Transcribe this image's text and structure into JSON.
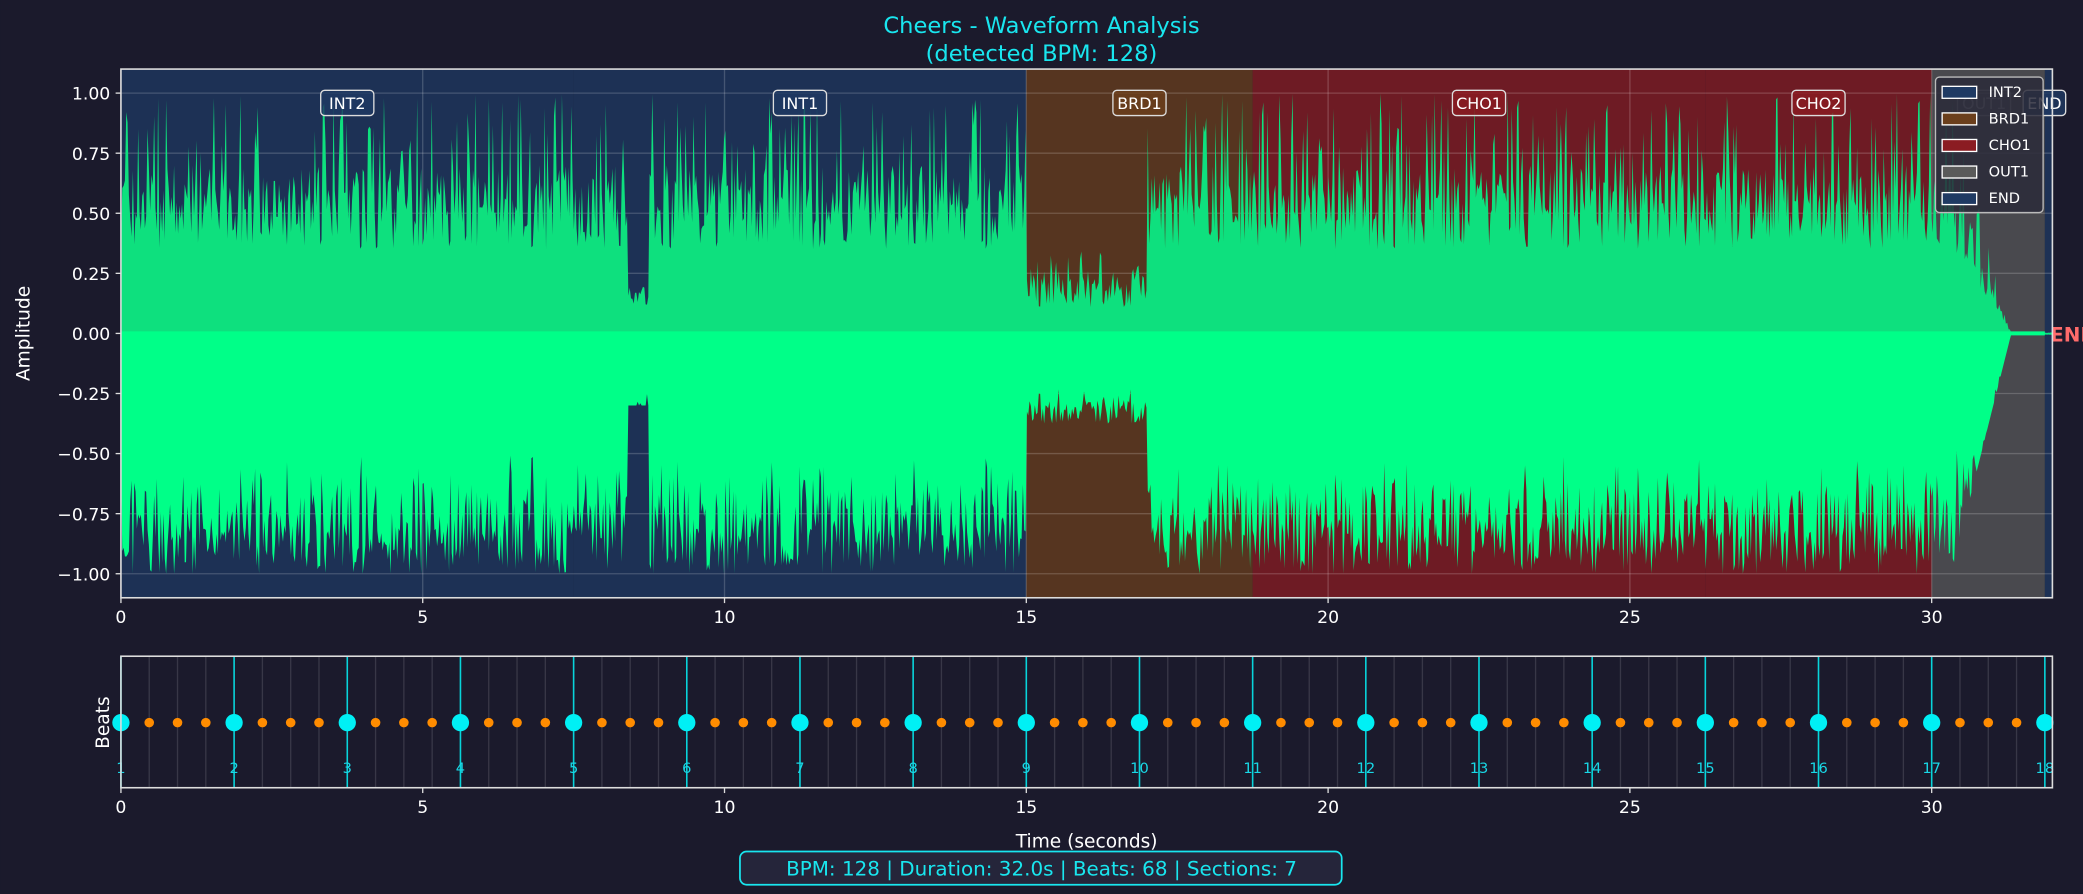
{
  "chart_data": [
    {
      "type": "area",
      "title": "Cheers - Waveform Analysis",
      "subtitle": "(detected BPM: 128)",
      "xlabel": "",
      "ylabel": "Amplitude",
      "xlim": [
        0,
        32
      ],
      "ylim": [
        -1.1,
        1.1
      ],
      "x_ticks": [
        "0",
        "5",
        "10",
        "15",
        "20",
        "25",
        "30"
      ],
      "y_ticks": [
        "1.00",
        "0.75",
        "0.50",
        "0.25",
        "0.00",
        "−0.25",
        "−0.50",
        "−0.75",
        "−1.00"
      ],
      "grid": true,
      "waveform_color": "#00ff88",
      "sections": [
        {
          "label": "INT2",
          "start": 0,
          "end": 7.5,
          "color": "#1f3a63"
        },
        {
          "label": "INT1",
          "start": 7.5,
          "end": 15,
          "color": "#1f3a63"
        },
        {
          "label": "BRD1",
          "start": 15,
          "end": 18.75,
          "color": "#6b3f1c"
        },
        {
          "label": "CHO1",
          "start": 18.75,
          "end": 26.25,
          "color": "#8b1c22"
        },
        {
          "label": "CHO2",
          "start": 26.25,
          "end": 30,
          "color": "#8b1c22"
        },
        {
          "label": "OUT1",
          "start": 30,
          "end": 31.875,
          "color": "#5a5a5a"
        },
        {
          "label": "END",
          "start": 31.875,
          "end": 32,
          "color": "#1f3a63"
        }
      ],
      "end_marker": {
        "label": "END",
        "x": 31.875,
        "color": "#ff6b6b"
      },
      "legend": {
        "placement": "top-right",
        "entries": [
          {
            "label": "INT2",
            "color": "#1f3a63"
          },
          {
            "label": "BRD1",
            "color": "#6b3f1c"
          },
          {
            "label": "CHO1",
            "color": "#8b1c22"
          },
          {
            "label": "OUT1",
            "color": "#5a5a5a"
          },
          {
            "label": "END",
            "color": "#1f3a63"
          }
        ]
      }
    },
    {
      "type": "scatter",
      "xlabel": "Time (seconds)",
      "ylabel": "Beats",
      "xlim": [
        0,
        32
      ],
      "x_ticks": [
        "0",
        "5",
        "10",
        "15",
        "20",
        "25",
        "30"
      ],
      "bpm": 128,
      "beat_interval_s": 0.46875,
      "beat_count": 68,
      "downbeat_color": "#00f0f5",
      "beat_color": "#ff8c00",
      "downbeats": [
        {
          "n": "1",
          "t": 0
        },
        {
          "n": "2",
          "t": 1.875
        },
        {
          "n": "3",
          "t": 3.75
        },
        {
          "n": "4",
          "t": 5.625
        },
        {
          "n": "5",
          "t": 7.5
        },
        {
          "n": "6",
          "t": 9.375
        },
        {
          "n": "7",
          "t": 11.25
        },
        {
          "n": "8",
          "t": 13.125
        },
        {
          "n": "9",
          "t": 15
        },
        {
          "n": "10",
          "t": 16.875
        },
        {
          "n": "11",
          "t": 18.75
        },
        {
          "n": "12",
          "t": 20.625
        },
        {
          "n": "13",
          "t": 22.5
        },
        {
          "n": "14",
          "t": 24.375
        },
        {
          "n": "15",
          "t": 26.25
        },
        {
          "n": "16",
          "t": 28.125
        },
        {
          "n": "17",
          "t": 30
        },
        {
          "n": "18",
          "t": 31.875
        }
      ]
    }
  ],
  "summary": "BPM: 128 | Duration: 32.0s | Beats: 68 | Sections: 7"
}
